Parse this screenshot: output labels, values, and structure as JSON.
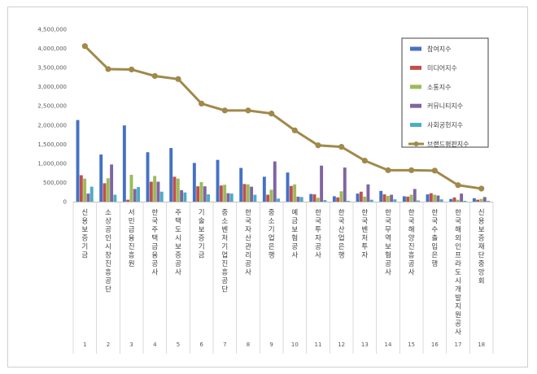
{
  "chart_data": {
    "type": "bar",
    "title": "",
    "xlabel": "",
    "ylabel": "",
    "ylim": [
      0,
      4500000
    ],
    "yticks": [
      0,
      500000,
      1000000,
      1500000,
      2000000,
      2500000,
      3000000,
      3500000,
      4000000,
      4500000
    ],
    "ytick_labels": [
      "0",
      "500,000",
      "1,000,000",
      "1,500,000",
      "2,000,000",
      "2,500,000",
      "3,000,000",
      "3,500,000",
      "4,000,000",
      "4,500,000"
    ],
    "grid": false,
    "legend_position": "top-right",
    "categories": [
      "신용보증기금",
      "소상공인시장진흥공단",
      "서민금융진흥원",
      "한국주택금융공사",
      "주택도시보증공사",
      "기술보증기금",
      "중소벤처기업진흥공단",
      "한국자산관리공사",
      "중소기업은행",
      "예금보험공사",
      "한국투자공사",
      "한국산업은행",
      "한국벤처투자",
      "한국무역보험공사",
      "한국해양진흥공사",
      "한국수출입은행",
      "한국해외인프라도시개발지원공사",
      "신용보증재단중앙회"
    ],
    "ranks": [
      "1",
      "2",
      "3",
      "4",
      "5",
      "6",
      "7",
      "8",
      "9",
      "10",
      "11",
      "12",
      "13",
      "14",
      "15",
      "16",
      "17",
      "18"
    ],
    "series": [
      {
        "name": "참여지수",
        "color": "#4472C4",
        "values": [
          2130000,
          1230000,
          1990000,
          1290000,
          1400000,
          1010000,
          1090000,
          880000,
          650000,
          760000,
          200000,
          140000,
          210000,
          280000,
          140000,
          190000,
          70000,
          90000
        ]
      },
      {
        "name": "미디어지수",
        "color": "#C0504D",
        "values": [
          690000,
          480000,
          50000,
          520000,
          650000,
          400000,
          420000,
          460000,
          180000,
          410000,
          190000,
          110000,
          260000,
          190000,
          130000,
          220000,
          110000,
          50000
        ]
      },
      {
        "name": "소통지수",
        "color": "#9BBB59",
        "values": [
          600000,
          610000,
          700000,
          670000,
          600000,
          510000,
          440000,
          450000,
          310000,
          450000,
          100000,
          270000,
          130000,
          150000,
          180000,
          180000,
          50000,
          70000
        ]
      },
      {
        "name": "커뮤니티지수",
        "color": "#8064A2",
        "values": [
          210000,
          970000,
          330000,
          520000,
          300000,
          400000,
          220000,
          390000,
          1050000,
          130000,
          940000,
          890000,
          450000,
          180000,
          330000,
          160000,
          210000,
          120000
        ]
      },
      {
        "name": "사회공헌지수",
        "color": "#4BACC6",
        "values": [
          390000,
          180000,
          380000,
          260000,
          240000,
          190000,
          210000,
          180000,
          80000,
          120000,
          40000,
          20000,
          50000,
          60000,
          30000,
          60000,
          20000,
          20000
        ]
      }
    ],
    "line_series": {
      "name": "브랜드평판지수",
      "color": "#A0894A",
      "values": [
        4060000,
        3460000,
        3450000,
        3280000,
        3200000,
        2560000,
        2380000,
        2380000,
        2300000,
        1860000,
        1470000,
        1430000,
        1070000,
        820000,
        820000,
        810000,
        430000,
        340000
      ]
    }
  }
}
